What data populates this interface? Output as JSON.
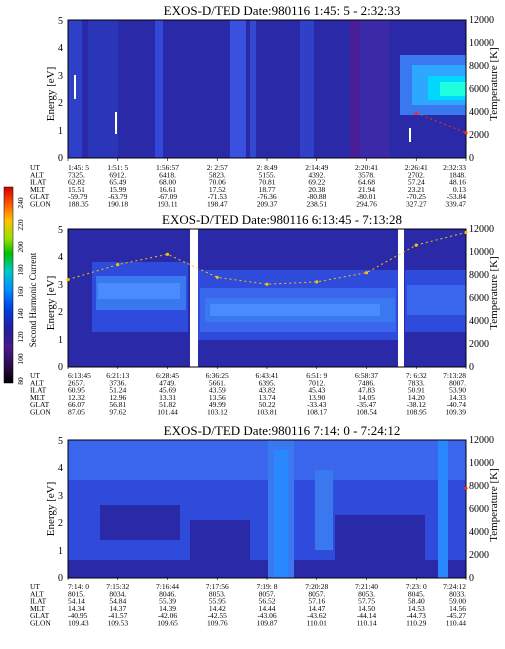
{
  "colors": {
    "deep_blue": "#2a2aa8",
    "blue": "#2e4bdc",
    "light_blue": "#3a78f0",
    "cyan": "#00d0ff",
    "purple": "#5a1e8c",
    "red_marker": "#ff3000",
    "yellow_marker": "#ffc000"
  },
  "colorbar": {
    "label": "Second Harmonic Current",
    "ticks": [
      "240",
      "220",
      "200",
      "180",
      "160",
      "140",
      "120",
      "100",
      "80"
    ],
    "colors": [
      "#d00000",
      "#ff6000",
      "#ffc000",
      "#a0e000",
      "#00c000",
      "#00c8c8",
      "#0090ff",
      "#0040e0",
      "#2020a0",
      "#4a1a8c",
      "#2a0a4a",
      "#000000"
    ]
  },
  "panels": [
    {
      "title": "EXOS-D/TED   Date:980116  1:45: 5 - 2:32:33",
      "energy_label": "Energy [eV]",
      "temp_label": "Temperature [K]",
      "energy_ticks": [
        "0",
        "1",
        "2",
        "3",
        "4",
        "5"
      ],
      "temp_ticks": [
        "0",
        "2000",
        "4000",
        "6000",
        "8000",
        "10000",
        "12000"
      ],
      "table": {
        "rows": [
          "UT",
          "ALT",
          "ILAT",
          "MLT",
          "GLAT",
          "GLON"
        ],
        "cols": [
          [
            "1:45: 5",
            "7325.",
            "62.82",
            "15.51",
            "-59.79",
            "188.35"
          ],
          [
            "1:51: 5",
            "6912.",
            "65.49",
            "15.99",
            "-63.79",
            "190.18"
          ],
          [
            "1:56:57",
            "6418.",
            "68.00",
            "16.61",
            "-67.09",
            "193.11"
          ],
          [
            "2: 2:57",
            "5823.",
            "70.06",
            "17.52",
            "-71.53",
            "198.47"
          ],
          [
            "2: 8:49",
            "5155.",
            "70.81",
            "18.77",
            "-76.36",
            "209.37"
          ],
          [
            "2:14:49",
            "4392.",
            "69.22",
            "20.38",
            "-80.88",
            "238.51"
          ],
          [
            "2:20:41",
            "3578.",
            "64.68",
            "21.94",
            "-80.01",
            "294.76"
          ],
          [
            "2:26:41",
            "2702.",
            "57.24",
            "23.21",
            "-70.25",
            "327.27"
          ],
          [
            "2:32:33",
            "1848.",
            "48.16",
            "0.13",
            "-53.84",
            "339.47"
          ]
        ]
      }
    },
    {
      "title": "EXOS-D/TED   Date:980116  6:13:45 - 7:13:28",
      "energy_label": "Energy [eV]",
      "temp_label": "Temperature [K]",
      "energy_ticks": [
        "0",
        "1",
        "2",
        "3",
        "4",
        "5"
      ],
      "temp_ticks": [
        "0",
        "2000",
        "4000",
        "6000",
        "8000",
        "10000",
        "12000"
      ],
      "table": {
        "rows": [
          "UT",
          "ALT",
          "ILAT",
          "MLT",
          "GLAT",
          "GLON"
        ],
        "cols": [
          [
            "6:13:45",
            "2657.",
            "60.95",
            "12.32",
            "66.07",
            "87.05"
          ],
          [
            "6:21:13",
            "3736.",
            "51.24",
            "12.96",
            "56.81",
            "97.62"
          ],
          [
            "6:28:45",
            "4749.",
            "45.69",
            "13.31",
            "51.82",
            "101.44"
          ],
          [
            "6:36:25",
            "5661.",
            "43.59",
            "13.56",
            "49.99",
            "103.12"
          ],
          [
            "6:43:41",
            "6395.",
            "43.82",
            "13.74",
            "50.22",
            "103.81"
          ],
          [
            "6:51: 9",
            "7012.",
            "45.43",
            "13.90",
            "-33.43",
            "108.17"
          ],
          [
            "6:58:37",
            "7486.",
            "47.83",
            "14.05",
            "-35.47",
            "108.54"
          ],
          [
            "7: 6:32",
            "7833.",
            "50.91",
            "14.20",
            "-38.12",
            "108.95"
          ],
          [
            "7:13:28",
            "8007.",
            "53.90",
            "14.33",
            "-40.74",
            "109.39"
          ]
        ]
      }
    },
    {
      "title": "EXOS-D/TED   Date:980116  7:14: 0 - 7:24:12",
      "energy_label": "Energy [eV]",
      "temp_label": "Temperature [K]",
      "energy_ticks": [
        "0",
        "1",
        "2",
        "3",
        "4",
        "5"
      ],
      "temp_ticks": [
        "0",
        "2000",
        "4000",
        "6000",
        "8000",
        "10000",
        "12000"
      ],
      "table": {
        "rows": [
          "UT",
          "ALT",
          "ILAT",
          "MLT",
          "GLAT",
          "GLON"
        ],
        "cols": [
          [
            "7:14: 0",
            "8015.",
            "54.14",
            "14.34",
            "-40.95",
            "109.43"
          ],
          [
            "7:15:32",
            "8034.",
            "54.84",
            "14.37",
            "-41.57",
            "109.53"
          ],
          [
            "7:16:44",
            "8046.",
            "55.39",
            "14.39",
            "-42.06",
            "109.65"
          ],
          [
            "7:17:56",
            "8053.",
            "55.95",
            "14.42",
            "-42.55",
            "109.76"
          ],
          [
            "7:19: 8",
            "8057.",
            "56.52",
            "14.44",
            "-43.06",
            "109.87"
          ],
          [
            "7:20:28",
            "8057.",
            "57.16",
            "14.47",
            "-43.62",
            "110.01"
          ],
          [
            "7:21:40",
            "8053.",
            "57.75",
            "14.50",
            "-44.14",
            "110.14"
          ],
          [
            "7:23: 0",
            "8045.",
            "58.40",
            "14.53",
            "-44.73",
            "110.29"
          ],
          [
            "7:24:12",
            "8033.",
            "59.00",
            "14.56",
            "-45.27",
            "110.44"
          ]
        ]
      }
    }
  ],
  "chart_data": [
    {
      "type": "heatmap",
      "title": "EXOS-D/TED   Date:980116  1:45: 5 - 2:32:33",
      "ylabel": "Energy [eV]",
      "y2label": "Temperature [K]",
      "ylim": [
        0,
        5
      ],
      "y2lim": [
        0,
        12000
      ],
      "x_ticks": [
        "1:45: 5",
        "1:51: 5",
        "1:56:57",
        "2: 2:57",
        "2: 8:49",
        "2:14:49",
        "2:20:41",
        "2:26:41",
        "2:32:33"
      ],
      "temperature_trace": [
        {
          "ut": "2:26:41",
          "temperature_K": 3900
        },
        {
          "ut": "2:32:33",
          "temperature_K": 2200
        }
      ]
    },
    {
      "type": "heatmap",
      "title": "EXOS-D/TED   Date:980116  6:13:45 - 7:13:28",
      "ylabel": "Energy [eV]",
      "y2label": "Temperature [K]",
      "ylim": [
        0,
        5
      ],
      "y2lim": [
        0,
        12000
      ],
      "x_ticks": [
        "6:13:45",
        "6:21:13",
        "6:28:45",
        "6:36:25",
        "6:43:41",
        "6:51: 9",
        "6:58:37",
        "7: 6:32",
        "7:13:28"
      ],
      "temperature_trace": [
        {
          "ut": "6:13:45",
          "temperature_K": 7600
        },
        {
          "ut": "6:21:13",
          "temperature_K": 8900
        },
        {
          "ut": "6:28:45",
          "temperature_K": 9800
        },
        {
          "ut": "6:36:25",
          "temperature_K": 7800
        },
        {
          "ut": "6:43:41",
          "temperature_K": 7200
        },
        {
          "ut": "6:51: 9",
          "temperature_K": 7400
        },
        {
          "ut": "6:58:37",
          "temperature_K": 8200
        },
        {
          "ut": "7: 6:32",
          "temperature_K": 10600
        },
        {
          "ut": "7:13:28",
          "temperature_K": 11700
        }
      ]
    },
    {
      "type": "heatmap",
      "title": "EXOS-D/TED   Date:980116  7:14: 0 - 7:24:12",
      "ylabel": "Energy [eV]",
      "y2label": "Temperature [K]",
      "ylim": [
        0,
        5
      ],
      "y2lim": [
        0,
        12000
      ],
      "x_ticks": [
        "7:14: 0",
        "7:15:32",
        "7:16:44",
        "7:17:56",
        "7:19: 8",
        "7:20:28",
        "7:21:40",
        "7:23: 0",
        "7:24:12"
      ],
      "temperature_trace": [
        {
          "ut": "7:24:12",
          "temperature_K": 7800
        }
      ]
    }
  ]
}
